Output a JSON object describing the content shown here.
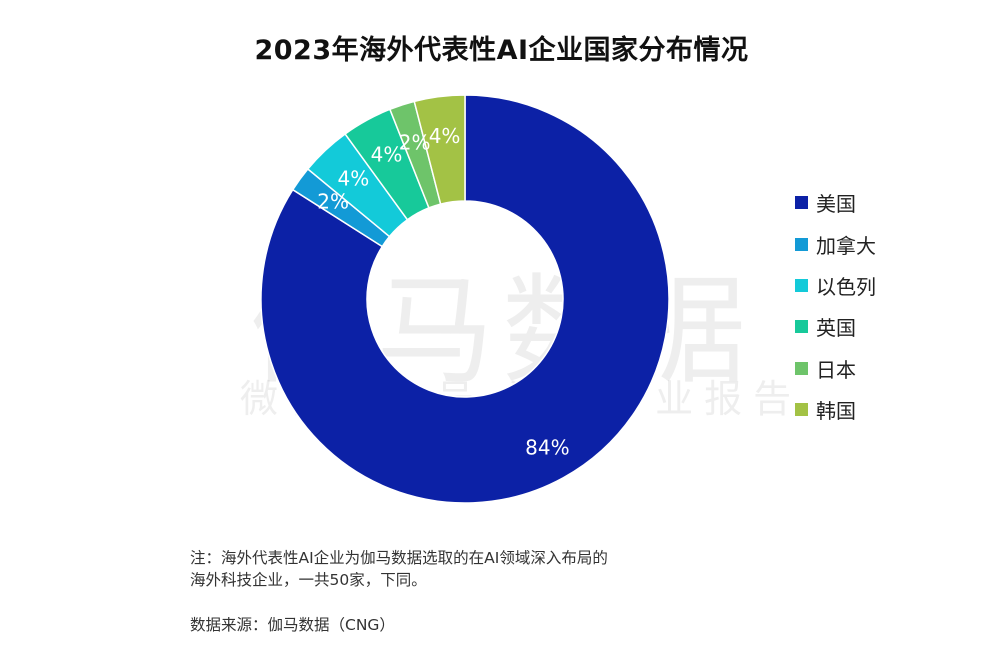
{
  "chart_data": {
    "type": "pie",
    "title": "2023年海外代表性AI企业国家分布情况",
    "categories": [
      "美国",
      "加拿大",
      "以色列",
      "英国",
      "日本",
      "韩国"
    ],
    "values": [
      84,
      2,
      4,
      4,
      2,
      4
    ],
    "labels": [
      "84%",
      "2%",
      "4%",
      "4%",
      "2%",
      "4%"
    ],
    "colors": [
      "#0c21a6",
      "#139ad6",
      "#13cad9",
      "#17c99a",
      "#6ec46a",
      "#a3c245"
    ],
    "legend_position": "right",
    "style": "donut"
  },
  "watermark": {
    "main": "伽马数据",
    "sub": "微信公众号·游戏产业报告"
  },
  "footer": {
    "note_line1": "注：海外代表性AI企业为伽马数据选取的在AI领域深入布局的",
    "note_line2": "海外科技企业，一共50家，下同。",
    "source": "数据来源：伽马数据（CNG）"
  }
}
